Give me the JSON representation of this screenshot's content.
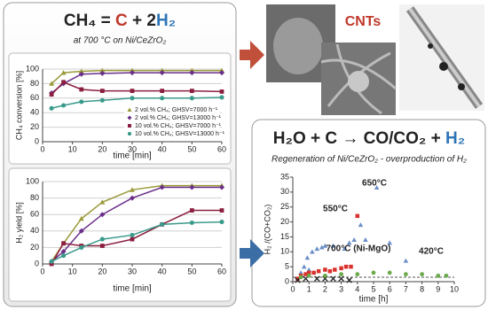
{
  "chart_data": [
    {
      "type": "line",
      "title": [
        "CH₄ = ",
        "C",
        " + 2",
        "H₂"
      ],
      "title_colors": [
        "#222222",
        "#c0392b",
        "#222222",
        "#2e75b6"
      ],
      "subtitle": "at 700 °C on Ni/CeZrO₂",
      "xlabel": "time [min]",
      "ylabel": "CH₄ conversion [%]",
      "x": [
        3,
        7,
        13,
        20,
        30,
        40,
        50,
        60
      ],
      "xlim": [
        0,
        60
      ],
      "xticks": [
        0,
        10,
        20,
        30,
        40,
        50,
        60
      ],
      "ylim": [
        0,
        100
      ],
      "yticks": [
        0,
        20,
        40,
        60,
        80,
        100
      ],
      "grid": true,
      "legend": "lower right",
      "series": [
        {
          "name": "2 vol.% CH₄; GHSV=7000 h⁻¹",
          "color": "#9a9a3a",
          "marker": "triangle",
          "values": [
            80,
            95,
            97,
            98,
            98,
            98,
            98,
            98
          ]
        },
        {
          "name": "2 vol.% CH₄; GHSV=13000 h⁻¹",
          "color": "#6a2f8a",
          "marker": "diamond",
          "values": [
            67,
            80,
            93,
            94,
            95,
            95,
            95,
            95
          ]
        },
        {
          "name": "10 vol.% CH₄; GHSV=7000 h⁻¹",
          "color": "#8b1f3f",
          "marker": "square",
          "values": [
            65,
            82,
            72,
            70,
            70,
            70,
            70,
            69
          ]
        },
        {
          "name": "10 vol.% CH₄; GHSV=13000 h⁻¹",
          "color": "#3a9a8a",
          "marker": "circle",
          "values": [
            46,
            50,
            55,
            57,
            60,
            60,
            60,
            61
          ]
        }
      ]
    },
    {
      "type": "line",
      "xlabel": "time [min]",
      "ylabel": "H₂ yield [%]",
      "x": [
        3,
        7,
        13,
        20,
        30,
        40,
        50,
        60
      ],
      "xlim": [
        0,
        60
      ],
      "xticks": [
        0,
        10,
        20,
        30,
        40,
        50,
        60
      ],
      "ylim": [
        0,
        100
      ],
      "yticks": [
        0,
        20,
        40,
        60,
        80,
        100
      ],
      "grid": true,
      "series": [
        {
          "color": "#9a9a3a",
          "marker": "triangle",
          "values": [
            3,
            25,
            55,
            75,
            90,
            95,
            95,
            95
          ]
        },
        {
          "color": "#6a2f8a",
          "marker": "diamond",
          "values": [
            3,
            15,
            40,
            60,
            80,
            93,
            93,
            93
          ]
        },
        {
          "color": "#8b1f3f",
          "marker": "square",
          "values": [
            0,
            25,
            22,
            22,
            30,
            48,
            65,
            65
          ]
        },
        {
          "color": "#3a9a8a",
          "marker": "circle",
          "values": [
            3,
            10,
            20,
            30,
            35,
            48,
            50,
            51
          ]
        }
      ]
    },
    {
      "type": "scatter",
      "title": [
        "H₂O + C → CO/CO₂ + ",
        "H₂"
      ],
      "title_colors": [
        "#222222",
        "#2e75b6"
      ],
      "subtitle": "Regeneration of Ni/CeZrO₂ - overproduction of H₂",
      "xlabel": "time [h]",
      "ylabel": "H₂ /(CO+CO₂)",
      "xlim": [
        0,
        10
      ],
      "xticks": [
        0,
        1,
        2,
        3,
        4,
        5,
        6,
        7,
        8,
        9,
        10
      ],
      "ylim": [
        0,
        35
      ],
      "yticks": [
        0,
        5,
        10,
        15,
        20,
        25,
        30,
        35
      ],
      "hline": 1.5,
      "series": [
        {
          "name": "650°C",
          "color": "#6a8fc8",
          "marker": "triangle",
          "x": [
            0.5,
            0.7,
            0.9,
            1.0,
            1.2,
            1.5,
            1.8,
            2.0,
            2.5,
            3.2,
            3.5,
            3.8,
            4.2,
            4.5,
            5.2,
            6.0,
            7.0
          ],
          "values": [
            3,
            5,
            8,
            4,
            10,
            11,
            11.5,
            12,
            12,
            11,
            13,
            14,
            19,
            14,
            31.5,
            13,
            7
          ]
        },
        {
          "name": "550°C",
          "color": "#d9312b",
          "marker": "square",
          "x": [
            0.3,
            0.5,
            0.8,
            1.0,
            1.3,
            1.6,
            2.0,
            2.3,
            2.6,
            3.0,
            3.3,
            3.6,
            4.0
          ],
          "values": [
            1,
            2,
            2.5,
            3,
            3,
            3.5,
            4,
            3.5,
            4,
            4.5,
            5,
            5,
            22
          ]
        },
        {
          "name": "700°C (Ni-MgO)",
          "color": "#222222",
          "marker": "x",
          "x": [
            0.3,
            0.8,
            1.5,
            2.0,
            2.5,
            3.0,
            3.5
          ],
          "values": [
            0.5,
            1,
            1,
            1,
            1,
            1,
            0.5
          ]
        },
        {
          "name": "420°C",
          "color": "#6aaa4a",
          "marker": "circle",
          "x": [
            0.5,
            1,
            2,
            3,
            4,
            5,
            6,
            7,
            8,
            9,
            9.5
          ],
          "values": [
            1.5,
            2,
            2,
            2.5,
            2.5,
            3,
            3,
            2.5,
            2.5,
            2,
            2
          ]
        }
      ]
    }
  ],
  "image_label": "CNTs"
}
